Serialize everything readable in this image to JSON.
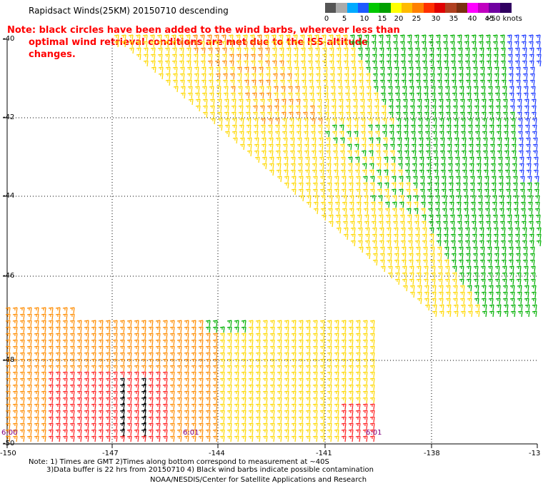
{
  "title": "Rapidsact Winds(25KM) 20150710 descending",
  "note": {
    "line1": "Note: black circles have been added to the wind barbs, wherever less than",
    "line2": "optimal wind retrieval conditions are met due to the ISS altitude changes."
  },
  "legend": {
    "colors": [
      "#555555",
      "#aaaaaa",
      "#00aaff",
      "#1e5aff",
      "#00c800",
      "#00a000",
      "#ffff00",
      "#ffbb00",
      "#ff8000",
      "#ff3000",
      "#e00000",
      "#b04020",
      "#7a3010",
      "#ff00ff",
      "#c000c0",
      "#7000a0",
      "#300060"
    ],
    "ticks": [
      "0",
      "5",
      "10",
      "15",
      "20",
      "25",
      "30",
      "35",
      "40",
      "45",
      ">50 knots"
    ]
  },
  "axes": {
    "lat_labels": [
      "-40",
      "-42",
      "-44",
      "-46",
      "-48",
      "-50"
    ],
    "lon_labels": [
      "-150",
      "-147",
      "-144",
      "-141",
      "-138",
      "-13"
    ]
  },
  "time_labels": [
    "6:00",
    "6:01",
    "6:01"
  ],
  "footer": {
    "line1": "Note: 1) Times are GMT 2)Times along bottom correspond to measurement at ~40S",
    "line2": "3)Data buffer is 22 hrs from 20150710 4) Black wind barbs indicate possible contamination",
    "line3": "NOAA/NESDIS/Center for Satellite Applications and Research"
  },
  "wind_colors": {
    "green": "#00b000",
    "yellow": "#ffd800",
    "orange": "#ff8c00",
    "red": "#ff2020",
    "blue": "#1e3cff",
    "black": "#000000"
  }
}
